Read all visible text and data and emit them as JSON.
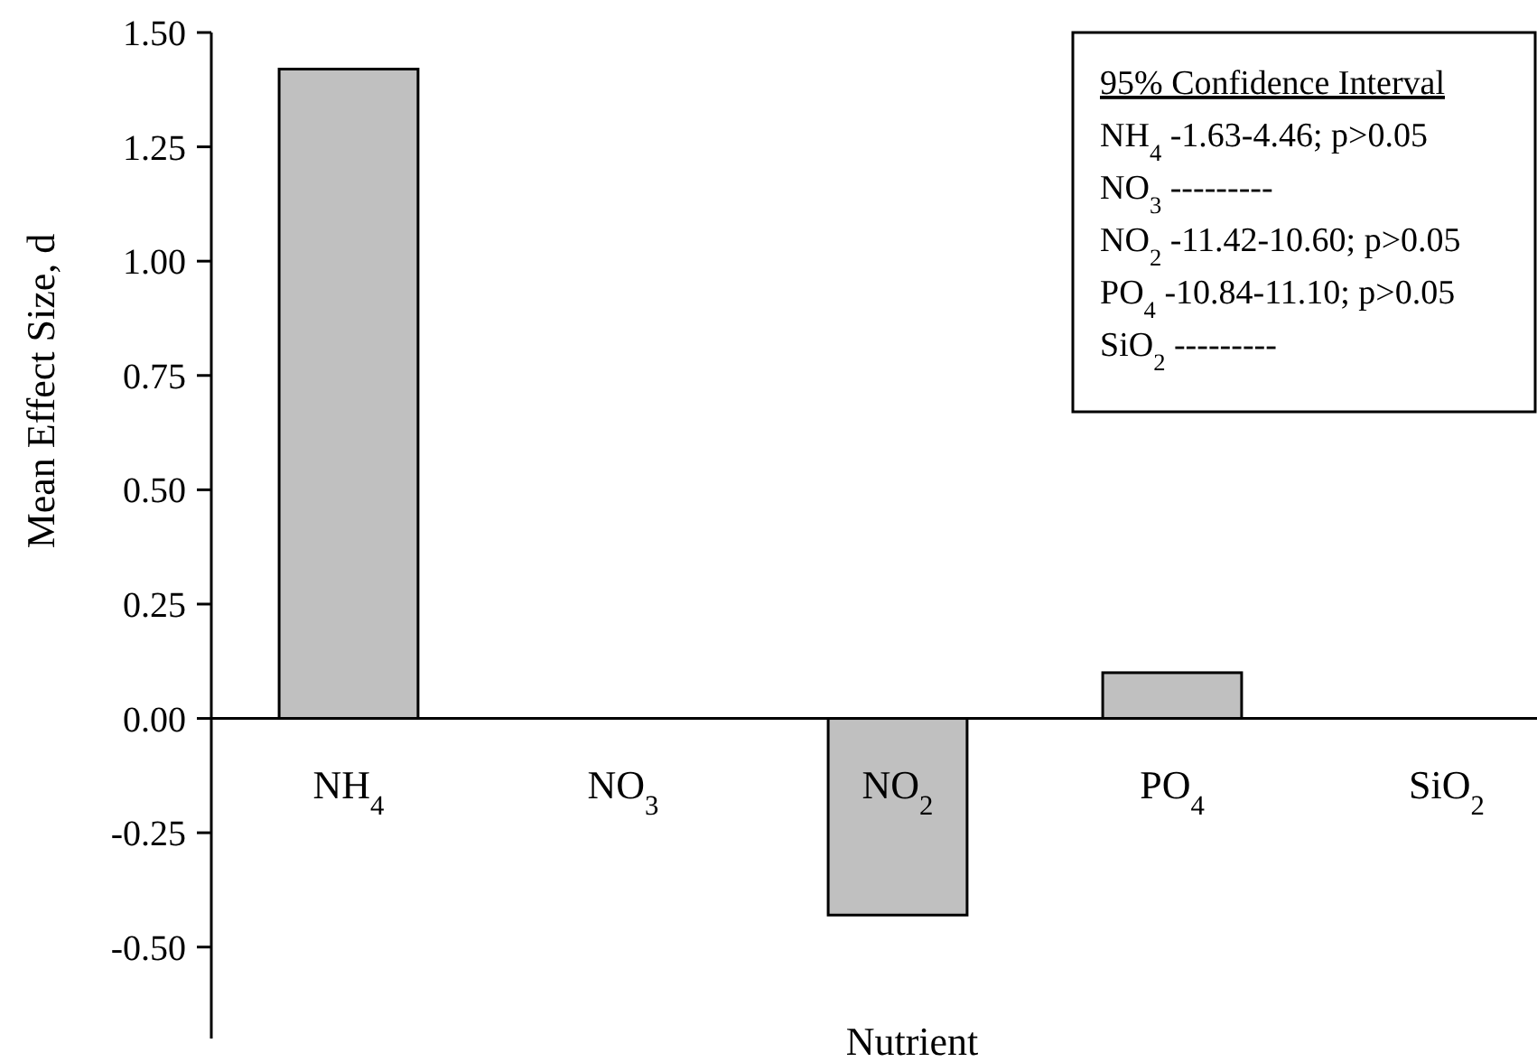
{
  "chart_data": {
    "type": "bar",
    "xlabel": "Nutrient",
    "ylabel": "Mean Effect Size, d",
    "categories": [
      "NH$_{4}$",
      "NO$_{3}$",
      "NO$_{2}$",
      "PO$_{4}$",
      "SiO$_{2}$"
    ],
    "values": [
      1.42,
      null,
      -0.43,
      0.1,
      null
    ],
    "color": "#c0c0c0",
    "ylim": [
      -0.7,
      1.5
    ],
    "yticks": [
      {
        "value": -0.5,
        "label": "-0.50"
      },
      {
        "value": -0.25,
        "label": "-0.25"
      },
      {
        "value": 0,
        "label": "0.00"
      },
      {
        "value": 0.25,
        "label": "0.25"
      },
      {
        "value": 0.5,
        "label": "0.50"
      },
      {
        "value": 0.75,
        "label": "0.75"
      },
      {
        "value": 1,
        "label": "1.00"
      },
      {
        "value": 1.25,
        "label": "1.25"
      },
      {
        "value": 1.5,
        "label": "1.50"
      }
    ],
    "grid": false,
    "annotations": [
      "95% Confidence Interval",
      "NH$_{4}$ -1.63-4.46; p>0.05",
      "NO$_{3}$  ---------",
      "NO$_{2}$ -11.42-10.60; p>0.05",
      "PO$_{4}$ -10.84-11.10; p>0.05",
      "SiO$_{2}$ ---------"
    ]
  }
}
